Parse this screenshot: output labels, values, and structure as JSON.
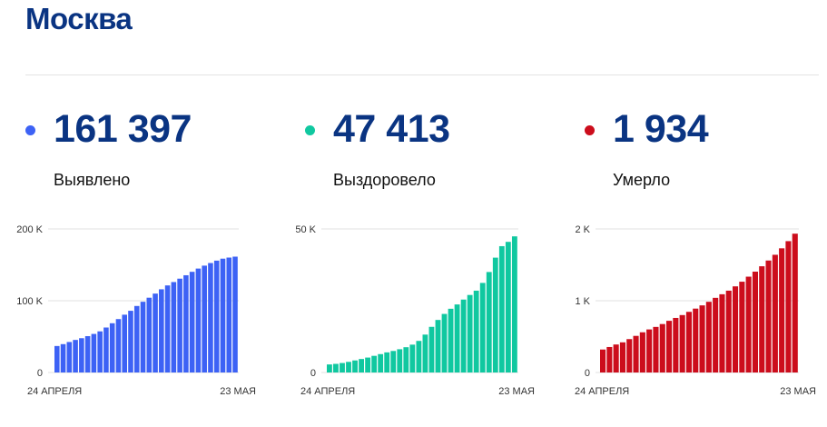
{
  "title": "Москва",
  "colors": {
    "confirmed": "#3d62f5",
    "recovered": "#10c8a0",
    "deaths": "#cc0d1c",
    "title": "#0a3482"
  },
  "stats": [
    {
      "value": "161 397",
      "label": "Выявлено"
    },
    {
      "value": "47 413",
      "label": "Выздоровело"
    },
    {
      "value": "1 934",
      "label": "Умерло"
    }
  ],
  "chart_data": [
    {
      "type": "bar",
      "x_start_label": "24 АПРЕЛЯ",
      "x_end_label": "23 МАЯ",
      "yticks": [
        {
          "value": 0,
          "label": "0"
        },
        {
          "value": 100000,
          "label": "100 K"
        },
        {
          "value": 200000,
          "label": "200 K"
        }
      ],
      "ylim": [
        0,
        200000
      ],
      "color": "#3d62f5",
      "values": [
        36897,
        39509,
        42480,
        45351,
        47767,
        50646,
        53739,
        57300,
        62658,
        68606,
        74401,
        80521,
        85973,
        92676,
        98522,
        104189,
        109918,
        115909,
        121301,
        126004,
        130716,
        135464,
        140271,
        144791,
        148861,
        152490,
        155846,
        158590,
        160100,
        161397
      ]
    },
    {
      "type": "bar",
      "x_start_label": "24 АПРЕЛЯ",
      "x_end_label": "23 МАЯ",
      "yticks": [
        {
          "value": 0,
          "label": "0"
        },
        {
          "value": 50000,
          "label": "50 K"
        }
      ],
      "ylim": [
        0,
        50000
      ],
      "color": "#10c8a0",
      "values": [
        2800,
        3000,
        3300,
        3700,
        4200,
        4700,
        5200,
        5800,
        6400,
        7000,
        7500,
        8100,
        8800,
        9700,
        11000,
        13200,
        15900,
        18300,
        20400,
        22200,
        23700,
        25400,
        27000,
        28500,
        31200,
        35000,
        40000,
        44000,
        45500,
        47413
      ]
    },
    {
      "type": "bar",
      "x_start_label": "24 АПРЕЛЯ",
      "x_end_label": "23 МАЯ",
      "yticks": [
        {
          "value": 0,
          "label": "0"
        },
        {
          "value": 1000,
          "label": "1 K"
        },
        {
          "value": 2000,
          "label": "2 K"
        }
      ],
      "ylim": [
        0,
        2000
      ],
      "color": "#cc0d1c",
      "values": [
        320,
        355,
        390,
        420,
        465,
        510,
        560,
        600,
        635,
        675,
        720,
        760,
        800,
        845,
        890,
        935,
        985,
        1040,
        1090,
        1140,
        1200,
        1265,
        1335,
        1405,
        1480,
        1560,
        1640,
        1730,
        1830,
        1934
      ]
    }
  ]
}
